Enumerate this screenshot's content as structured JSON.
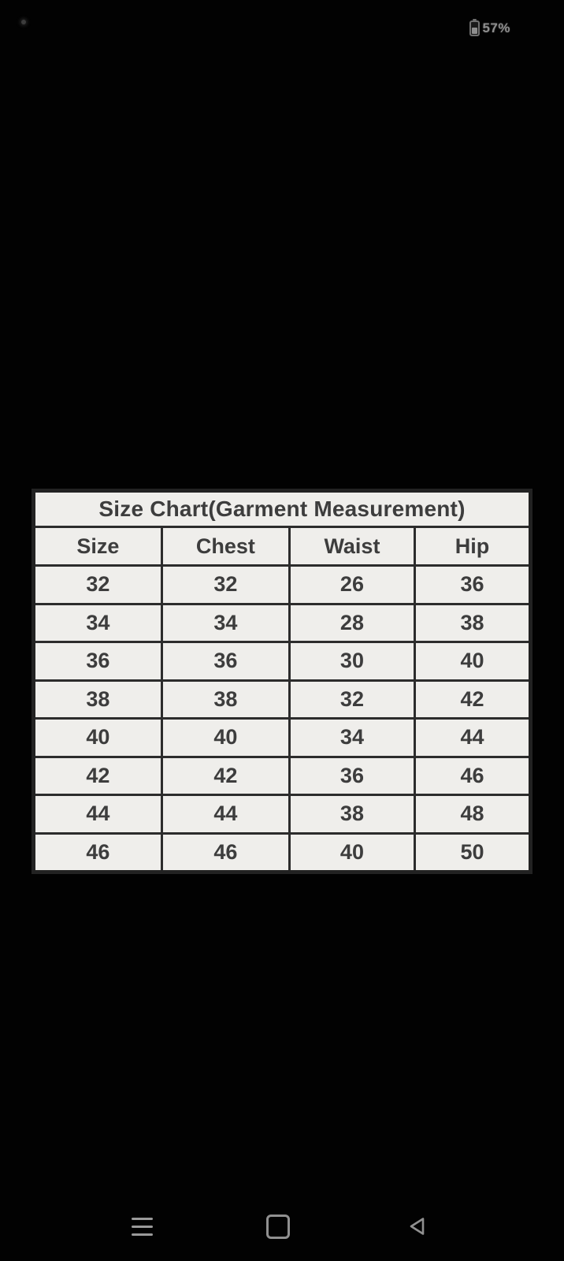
{
  "status_bar": {
    "battery_percent": "57%"
  },
  "table": {
    "title": "Size Chart(Garment Measurement)",
    "headers": [
      "Size",
      "Chest",
      "Waist",
      "Hip"
    ],
    "rows": [
      [
        "32",
        "32",
        "26",
        "36"
      ],
      [
        "34",
        "34",
        "28",
        "38"
      ],
      [
        "36",
        "36",
        "30",
        "40"
      ],
      [
        "38",
        "38",
        "32",
        "42"
      ],
      [
        "40",
        "40",
        "34",
        "44"
      ],
      [
        "42",
        "42",
        "36",
        "46"
      ],
      [
        "44",
        "44",
        "38",
        "48"
      ],
      [
        "46",
        "46",
        "40",
        "50"
      ]
    ]
  },
  "nav_bar": {
    "menu_icon": "menu-icon",
    "home_icon": "home-icon",
    "back_icon": "back-icon"
  },
  "colors": {
    "background": "#020202",
    "table_background": "#efeeeb",
    "table_border": "#2c2c2c",
    "table_text": "#3d3d3d",
    "status_text": "#8e8e8e",
    "nav_icon": "#9a9a9a"
  }
}
